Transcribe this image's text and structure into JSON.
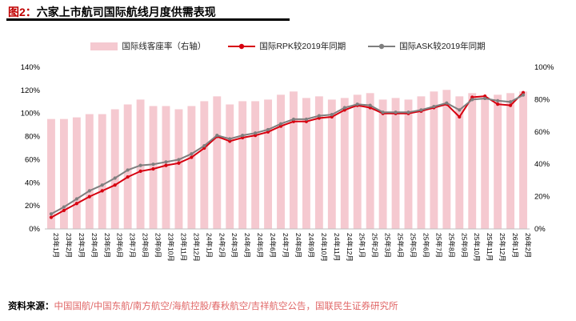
{
  "header": {
    "title_prefix": "图2：",
    "title": "六家上市航司国际航线月度供需表现"
  },
  "legend": [
    {
      "label": "国际线客座率（右轴）",
      "marker": "bar",
      "color": "#f5c9d0"
    },
    {
      "label": "国际RPK较2019年同期",
      "marker": "line",
      "color": "#d7000f"
    },
    {
      "label": "国际ASK较2019年同期",
      "marker": "line",
      "color": "#7f7f7f"
    }
  ],
  "footer": {
    "source_label": "资料来源：",
    "source_text": "中国国航/中国东航/南方航空/海航控股/春秋航空/吉祥航空公告，国联民生证券研究所"
  },
  "colors": {
    "title_prefix": "#c00000",
    "title_underline": "#000000",
    "source_text": "#e06666",
    "bar": "#f5c9d0",
    "rpk_line": "#d7000f",
    "ask_line": "#7f7f7f",
    "axis_line": "#bfbfbf",
    "tick_text": "#000000"
  },
  "chart_data": {
    "type": "combo-bar-line",
    "title": "六家上市航司国际航线月度供需表现",
    "grid": false,
    "legend_position": "top",
    "categories": [
      "23年1月",
      "23年2月",
      "23年3月",
      "23年4月",
      "23年5月",
      "23年6月",
      "23年7月",
      "23年8月",
      "23年9月",
      "23年10月",
      "23年11月",
      "23年12月",
      "24年1月",
      "24年2月",
      "24年3月",
      "24年4月",
      "24年5月",
      "24年6月",
      "24年7月",
      "24年8月",
      "24年9月",
      "24年10月",
      "24年11月",
      "24年12月",
      "25年1月",
      "25年2月",
      "25年3月",
      "25年4月",
      "25年5月",
      "25年6月",
      "25年7月",
      "25年8月",
      "25年9月",
      "25年10月",
      "25年11月",
      "25年12月",
      "26年1月",
      "26年2月"
    ],
    "series": [
      {
        "name": "国际线客座率（右轴）",
        "type": "bar",
        "axis": "right",
        "color": "#f5c9d0",
        "values": [
          68,
          68,
          69,
          71,
          71,
          74,
          77,
          80,
          76,
          76,
          74,
          76,
          79,
          82,
          77,
          79,
          79,
          80,
          83,
          85,
          81,
          82,
          80,
          81,
          83,
          84,
          80,
          81,
          80,
          82,
          85,
          86,
          82,
          84,
          81,
          83,
          84,
          85
        ]
      },
      {
        "name": "国际RPK较2019年同期",
        "type": "line",
        "axis": "left",
        "color": "#d7000f",
        "values": [
          10,
          16,
          22,
          28,
          33,
          38,
          45,
          50,
          52,
          55,
          57,
          62,
          70,
          80,
          76,
          79,
          81,
          84,
          89,
          93,
          93,
          96,
          97,
          103,
          107,
          105,
          100,
          100,
          100,
          102,
          105,
          108,
          97,
          114,
          115,
          108,
          107,
          118
        ]
      },
      {
        "name": "国际ASK较2019年同期",
        "type": "line",
        "axis": "left",
        "color": "#7f7f7f",
        "values": [
          13,
          19,
          26,
          33,
          38,
          44,
          51,
          55,
          56,
          58,
          60,
          65,
          72,
          81,
          78,
          81,
          83,
          86,
          91,
          95,
          95,
          98,
          99,
          105,
          108,
          107,
          101,
          101,
          101,
          103,
          106,
          109,
          103,
          112,
          113,
          111,
          110,
          116
        ]
      }
    ],
    "left_axis": {
      "min": 0,
      "max": 140,
      "step": 20,
      "suffix": "%",
      "label": ""
    },
    "right_axis": {
      "min": 0,
      "max": 100,
      "step": 20,
      "suffix": "%",
      "label": ""
    }
  }
}
